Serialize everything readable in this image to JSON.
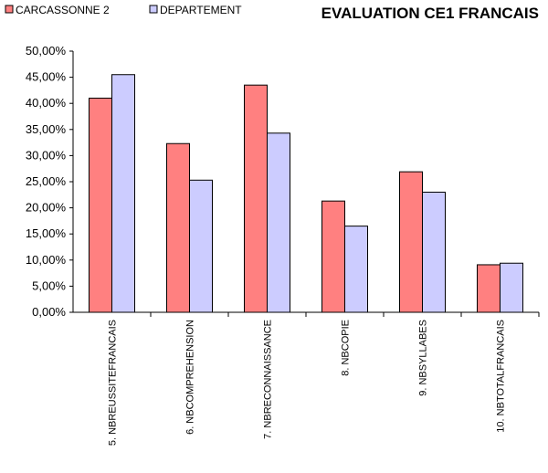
{
  "chart_data": {
    "type": "bar",
    "title": "EVALUATION CE1 FRANCAIS",
    "xlabel": "",
    "ylabel": "",
    "ylim": [
      0,
      50
    ],
    "y_ticks": [
      "0,00%",
      "5,00%",
      "10,00%",
      "15,00%",
      "20,00%",
      "25,00%",
      "30,00%",
      "35,00%",
      "40,00%",
      "45,00%",
      "50,00%"
    ],
    "categories": [
      "5. NBREUSSITEFRANCAIS",
      "6. NBCOMPREHENSION",
      "7. NBRECONNAISSANCE",
      "8. NBCOPIE",
      "9. NBSYLLABES",
      "10. NBTOTALFRANCAIS"
    ],
    "series": [
      {
        "name": "CARCASSONNE 2",
        "color": "#ff8080",
        "values": [
          41.0,
          32.3,
          43.5,
          21.3,
          26.9,
          9.1
        ]
      },
      {
        "name": "DEPARTEMENT",
        "color": "#ccccff",
        "values": [
          45.5,
          25.3,
          34.3,
          16.5,
          23.0,
          9.4
        ]
      }
    ],
    "grid": false,
    "legend": "top-left"
  }
}
